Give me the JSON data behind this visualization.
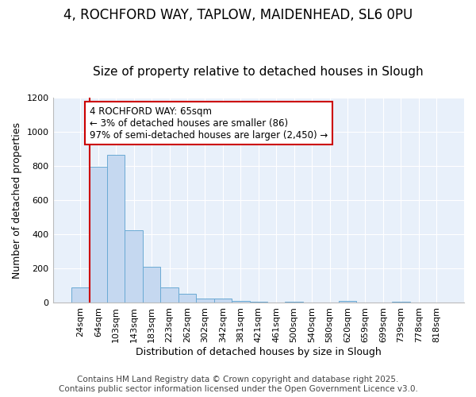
{
  "title_line1": "4, ROCHFORD WAY, TAPLOW, MAIDENHEAD, SL6 0PU",
  "title_line2": "Size of property relative to detached houses in Slough",
  "xlabel": "Distribution of detached houses by size in Slough",
  "ylabel": "Number of detached properties",
  "categories": [
    "24sqm",
    "64sqm",
    "103sqm",
    "143sqm",
    "183sqm",
    "223sqm",
    "262sqm",
    "302sqm",
    "342sqm",
    "381sqm",
    "421sqm",
    "461sqm",
    "500sqm",
    "540sqm",
    "580sqm",
    "620sqm",
    "659sqm",
    "699sqm",
    "739sqm",
    "778sqm",
    "818sqm"
  ],
  "values": [
    90,
    795,
    865,
    425,
    210,
    90,
    53,
    25,
    25,
    12,
    5,
    0,
    5,
    0,
    0,
    10,
    0,
    0,
    5,
    0,
    0
  ],
  "bar_color": "#c5d8f0",
  "bar_edge_color": "#6aaad4",
  "vline_color": "#cc0000",
  "annotation_text": "4 ROCHFORD WAY: 65sqm\n← 3% of detached houses are smaller (86)\n97% of semi-detached houses are larger (2,450) →",
  "annotation_box_color": "#ffffff",
  "annotation_edge_color": "#cc0000",
  "ylim": [
    0,
    1200
  ],
  "yticks": [
    0,
    200,
    400,
    600,
    800,
    1000,
    1200
  ],
  "plot_bg_color": "#e8f0fa",
  "fig_bg_color": "#ffffff",
  "grid_color": "#ffffff",
  "footer_line1": "Contains HM Land Registry data © Crown copyright and database right 2025.",
  "footer_line2": "Contains public sector information licensed under the Open Government Licence v3.0.",
  "title1_fontsize": 12,
  "title2_fontsize": 11,
  "axis_label_fontsize": 9,
  "tick_fontsize": 8,
  "annotation_fontsize": 8.5,
  "footer_fontsize": 7.5
}
